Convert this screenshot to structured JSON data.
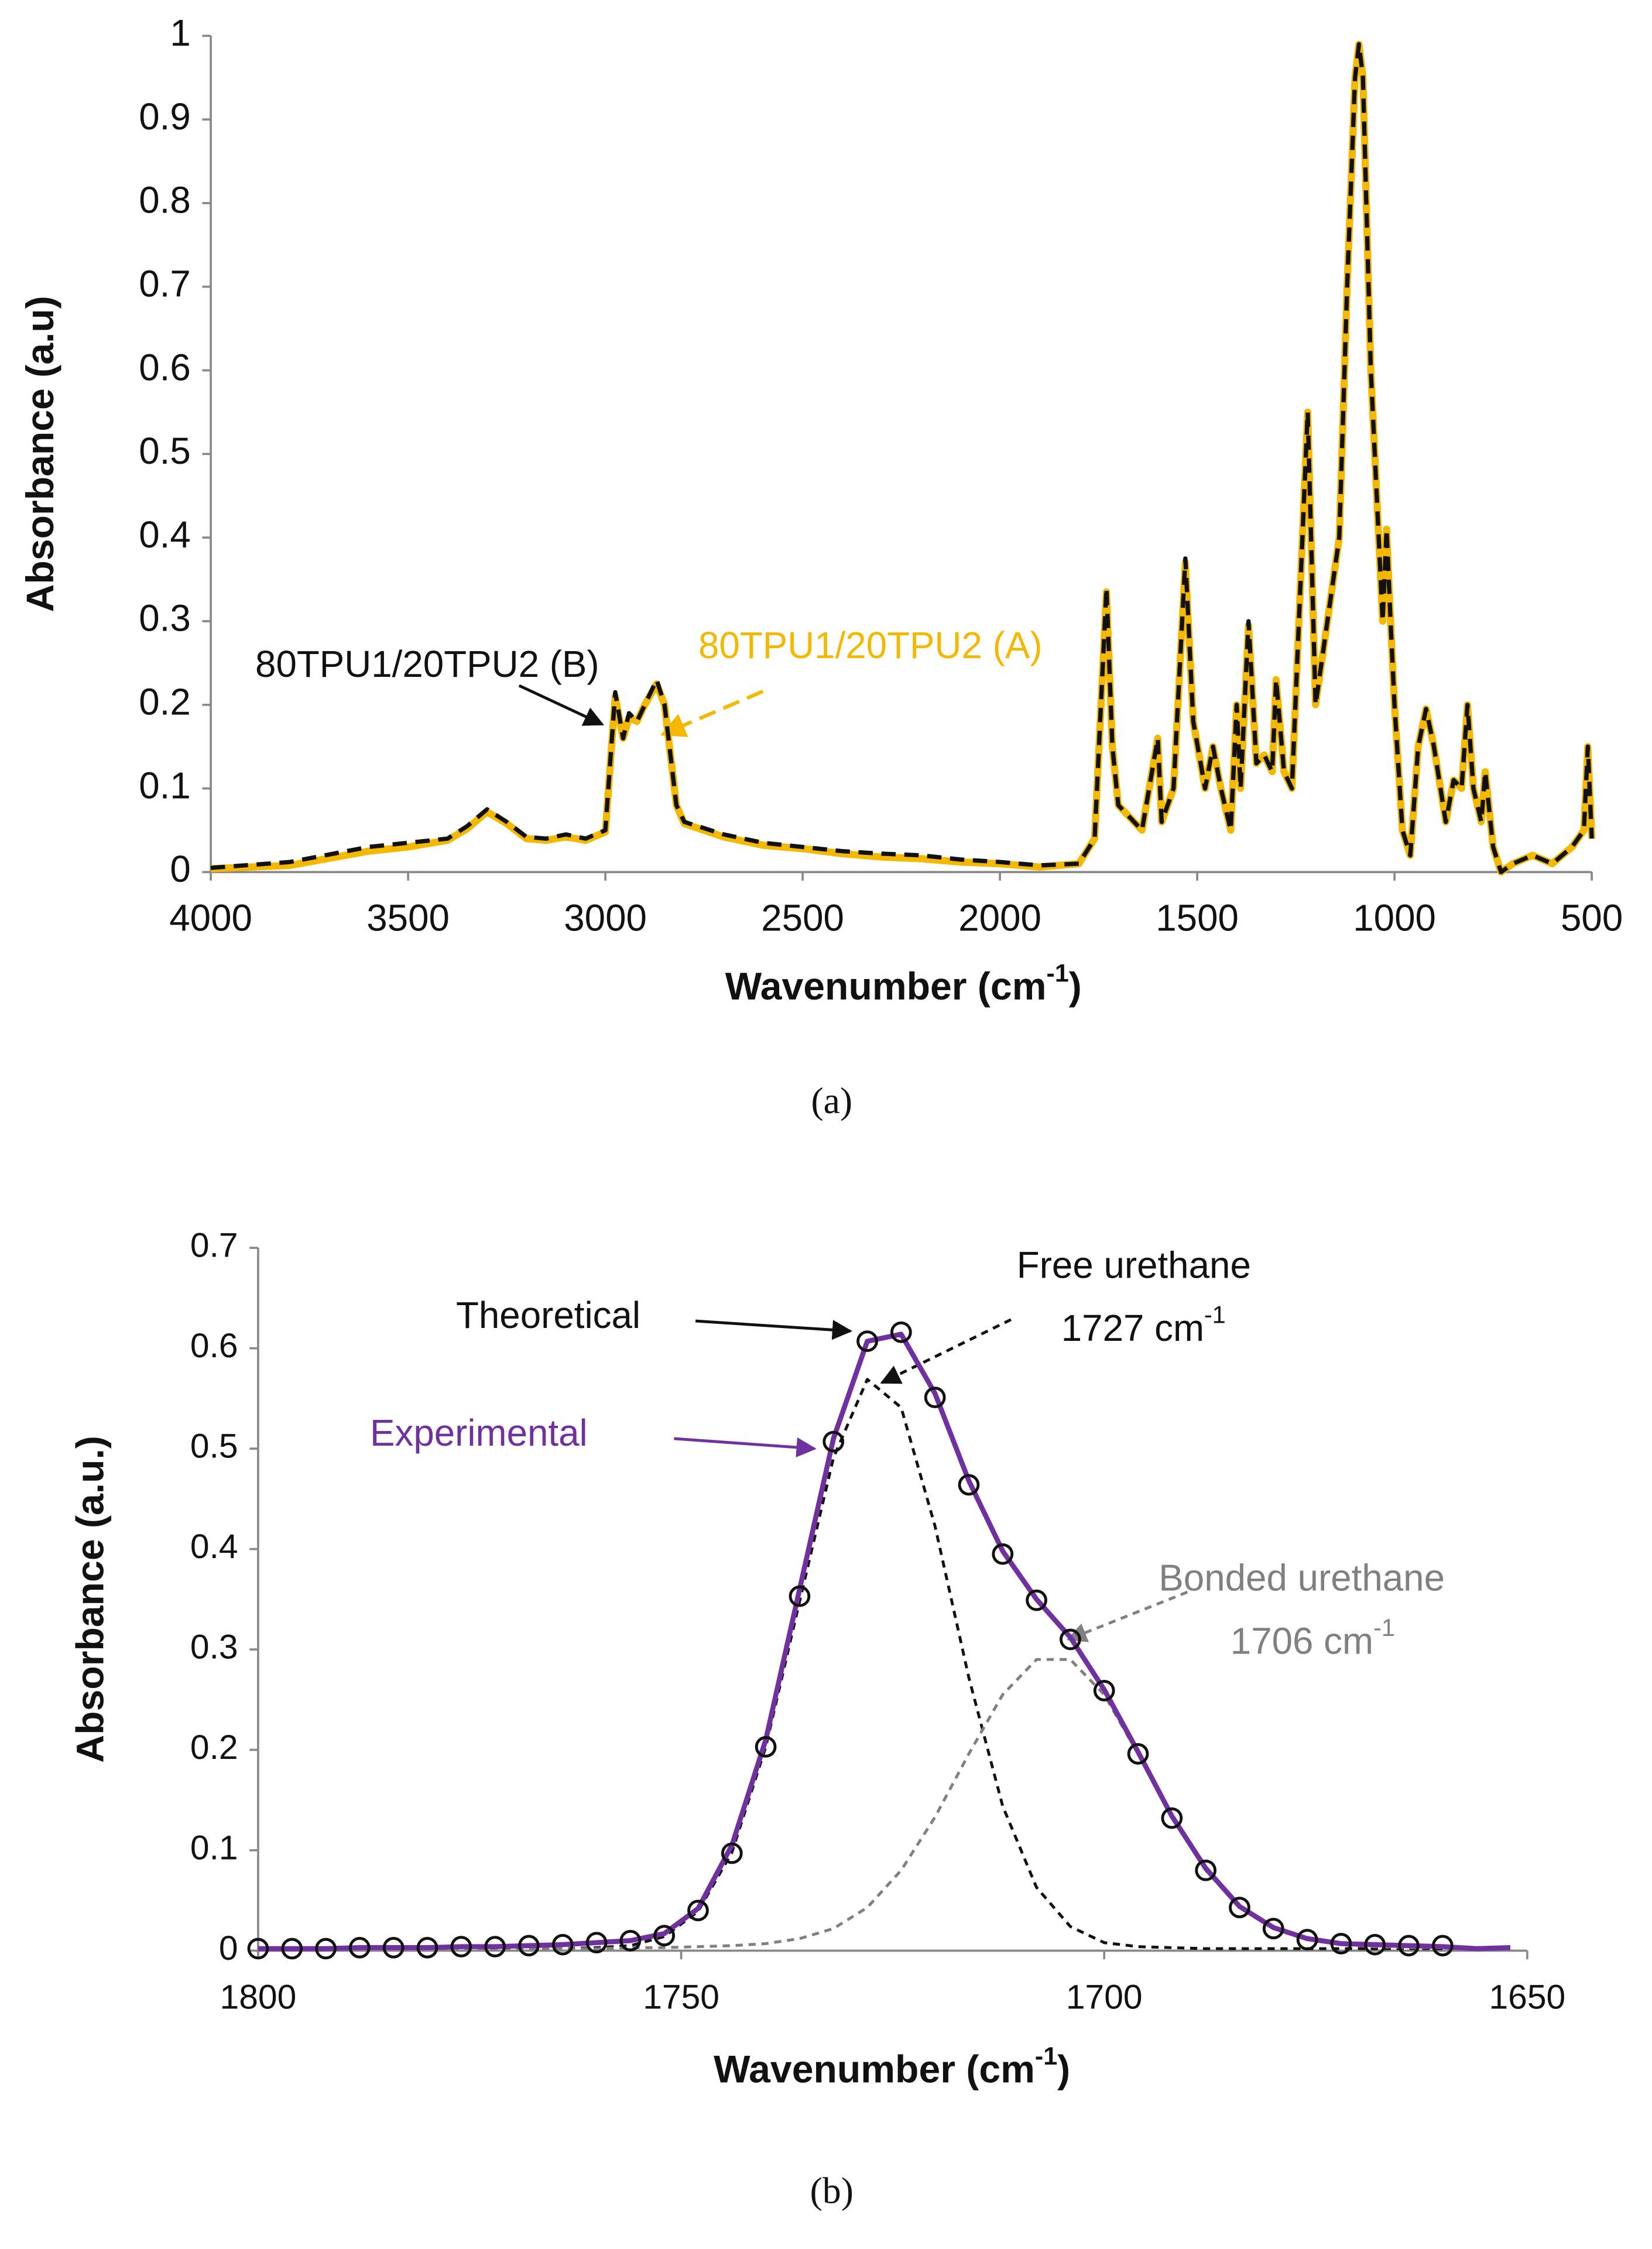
{
  "chart_data": [
    {
      "type": "line",
      "y_label": "Absorbance (a.u)",
      "x_label": {
        "text": "Wavenumber (cm",
        "superscript": "-1",
        "end": ")"
      },
      "caption": "(a)",
      "xlim": [
        4000,
        500
      ],
      "xticks": [
        4000,
        3500,
        3000,
        2500,
        2000,
        1500,
        1000,
        500
      ],
      "ylim": [
        0,
        1
      ],
      "yticks": [
        0,
        0.1,
        0.2,
        0.3,
        0.4,
        0.5,
        0.6,
        0.7,
        0.8,
        0.9,
        1
      ],
      "x": [
        4000,
        3800,
        3600,
        3500,
        3400,
        3350,
        3300,
        3250,
        3200,
        3150,
        3100,
        3050,
        3000,
        2975,
        2955,
        2940,
        2920,
        2900,
        2870,
        2850,
        2820,
        2800,
        2700,
        2600,
        2500,
        2400,
        2300,
        2200,
        2100,
        2000,
        1900,
        1800,
        1760,
        1730,
        1715,
        1700,
        1640,
        1600,
        1590,
        1560,
        1530,
        1510,
        1480,
        1460,
        1440,
        1415,
        1400,
        1390,
        1370,
        1350,
        1330,
        1310,
        1300,
        1280,
        1260,
        1220,
        1200,
        1170,
        1140,
        1120,
        1100,
        1090,
        1080,
        1060,
        1040,
        1030,
        1020,
        1010,
        1000,
        980,
        960,
        940,
        920,
        900,
        870,
        850,
        830,
        815,
        800,
        780,
        770,
        750,
        730,
        700,
        650,
        600,
        550,
        520,
        510,
        500
      ],
      "series": [
        {
          "name": "80TPU1/20TPU2 (A)",
          "color": "#f5b800",
          "style": "solid",
          "values": [
            0.004,
            0.008,
            0.025,
            0.03,
            0.038,
            0.052,
            0.072,
            0.058,
            0.04,
            0.038,
            0.042,
            0.038,
            0.048,
            0.21,
            0.16,
            0.185,
            0.18,
            0.2,
            0.225,
            0.2,
            0.08,
            0.058,
            0.042,
            0.032,
            0.028,
            0.022,
            0.018,
            0.016,
            0.012,
            0.01,
            0.006,
            0.01,
            0.04,
            0.335,
            0.15,
            0.08,
            0.05,
            0.16,
            0.06,
            0.1,
            0.37,
            0.18,
            0.1,
            0.15,
            0.1,
            0.05,
            0.2,
            0.1,
            0.295,
            0.13,
            0.14,
            0.12,
            0.23,
            0.12,
            0.1,
            0.55,
            0.2,
            0.3,
            0.4,
            0.7,
            0.95,
            0.99,
            0.95,
            0.6,
            0.4,
            0.3,
            0.41,
            0.3,
            0.2,
            0.05,
            0.02,
            0.15,
            0.195,
            0.15,
            0.06,
            0.11,
            0.1,
            0.2,
            0.1,
            0.06,
            0.12,
            0.03,
            0,
            0.01,
            0.02,
            0.01,
            0.03,
            0.05,
            0.15,
            0.04
          ]
        },
        {
          "name": "80TPU1/20TPU2 (B)",
          "color": "#111111",
          "style": "dashed",
          "values": [
            0.005,
            0.012,
            0.03,
            0.035,
            0.04,
            0.055,
            0.075,
            0.06,
            0.042,
            0.04,
            0.045,
            0.04,
            0.05,
            0.215,
            0.16,
            0.19,
            0.18,
            0.2,
            0.23,
            0.2,
            0.08,
            0.06,
            0.045,
            0.035,
            0.03,
            0.025,
            0.022,
            0.02,
            0.015,
            0.012,
            0.008,
            0.01,
            0.04,
            0.34,
            0.15,
            0.08,
            0.05,
            0.16,
            0.06,
            0.1,
            0.375,
            0.18,
            0.1,
            0.15,
            0.1,
            0.05,
            0.2,
            0.1,
            0.3,
            0.13,
            0.14,
            0.12,
            0.23,
            0.12,
            0.1,
            0.55,
            0.2,
            0.3,
            0.4,
            0.7,
            0.95,
            0.99,
            0.95,
            0.6,
            0.4,
            0.3,
            0.41,
            0.3,
            0.2,
            0.05,
            0.02,
            0.15,
            0.195,
            0.15,
            0.06,
            0.11,
            0.1,
            0.2,
            0.1,
            0.06,
            0.12,
            0.03,
            0,
            0.01,
            0.02,
            0.01,
            0.03,
            0.05,
            0.15,
            0.04
          ]
        }
      ]
    },
    {
      "type": "line",
      "y_label": "Absorbance (a.u.)",
      "x_label": {
        "text": "Wavenumber (cm",
        "superscript": "-1",
        "end": ")"
      },
      "caption": "(b)",
      "xlim": [
        1800,
        1650
      ],
      "xticks": [
        1800,
        1750,
        1700,
        1650
      ],
      "ylim": [
        0,
        0.7
      ],
      "yticks": [
        0,
        0.1,
        0.2,
        0.3,
        0.4,
        0.5,
        0.6,
        0.7
      ],
      "annotations": [
        {
          "text": "1727 cm",
          "superscript": "-1"
        },
        {
          "text": "1706 cm",
          "superscript": "-1"
        }
      ],
      "x": [
        1800,
        1796,
        1792,
        1788,
        1784,
        1780,
        1776,
        1772,
        1768,
        1764,
        1760,
        1756,
        1752,
        1748,
        1744,
        1740,
        1736,
        1732,
        1728,
        1724,
        1720,
        1716,
        1712,
        1708,
        1704,
        1700,
        1696,
        1692,
        1688,
        1684,
        1680,
        1676,
        1672,
        1668,
        1664,
        1660,
        1656,
        1652
      ],
      "series": [
        {
          "name": "Free urethane",
          "color": "#111111",
          "style": "dashed",
          "values": [
            0.002,
            0.002,
            0.002,
            0.002,
            0.002,
            0.002,
            0.002,
            0.002,
            0.002,
            0.002,
            0.003,
            0.005,
            0.014,
            0.039,
            0.098,
            0.203,
            0.348,
            0.491,
            0.569,
            0.541,
            0.423,
            0.272,
            0.144,
            0.063,
            0.024,
            0.008,
            0.004,
            0.003,
            0.002,
            0.002,
            0.002,
            0.002,
            0.002,
            0.002,
            0.002,
            0.002,
            null,
            null
          ]
        },
        {
          "name": "Bonded urethane",
          "color": "#808080",
          "style": "dashed",
          "values": [
            0.002,
            0.002,
            0.002,
            0.002,
            0.002,
            0.002,
            0.002,
            0.002,
            0.002,
            0.002,
            0.002,
            0.003,
            0.003,
            0.004,
            0.005,
            0.007,
            0.012,
            0.022,
            0.043,
            0.08,
            0.133,
            0.196,
            0.255,
            0.29,
            0.29,
            0.255,
            0.196,
            0.133,
            0.08,
            0.043,
            0.022,
            0.011,
            0.006,
            0.004,
            0.003,
            0.003,
            null,
            null
          ]
        },
        {
          "name": "Experimental",
          "color": "#7030a0",
          "style": "solid",
          "values": [
            0.002,
            0.002,
            0.002,
            0.003,
            0.003,
            0.003,
            0.004,
            0.004,
            0.005,
            0.006,
            0.008,
            0.01,
            0.017,
            0.042,
            0.105,
            0.21,
            0.36,
            0.51,
            0.607,
            0.614,
            0.555,
            0.468,
            0.398,
            0.35,
            0.312,
            0.26,
            0.198,
            0.134,
            0.082,
            0.044,
            0.023,
            0.012,
            0.007,
            0.006,
            0.005,
            0.004,
            0.002,
            0.003
          ]
        },
        {
          "name": "Theoretical",
          "color": "#111111",
          "style": "markers",
          "values": [
            0.002,
            0.002,
            0.002,
            0.003,
            0.003,
            0.003,
            0.004,
            0.004,
            0.005,
            0.006,
            0.008,
            0.01,
            0.015,
            0.04,
            0.097,
            0.203,
            0.353,
            0.507,
            0.607,
            0.616,
            0.551,
            0.464,
            0.395,
            0.349,
            0.31,
            0.259,
            0.196,
            0.132,
            0.08,
            0.043,
            0.022,
            0.011,
            0.007,
            0.006,
            0.005,
            0.005,
            null,
            null
          ]
        }
      ]
    }
  ]
}
